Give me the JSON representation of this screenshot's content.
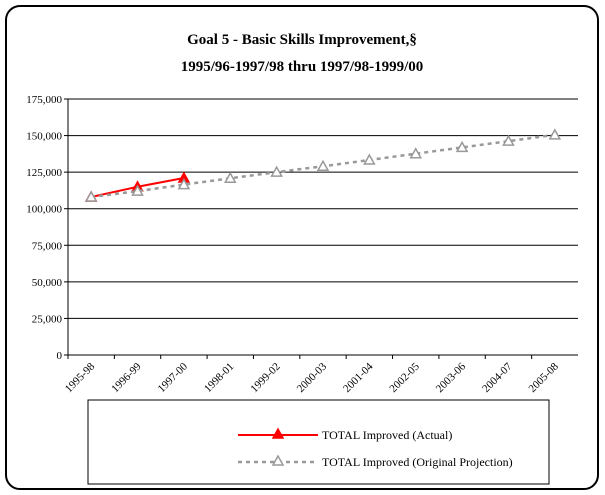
{
  "chart_data": {
    "type": "line",
    "title": [
      "Goal 5 - Basic Skills Improvement,§",
      "1995/96-1997/98 thru 1997/98-1999/00"
    ],
    "categories": [
      "1995-98",
      "1996-99",
      "1997-00",
      "1998-01",
      "1999-02",
      "2000-03",
      "2001-04",
      "2002-05",
      "2003-06",
      "2004-07",
      "2005-08"
    ],
    "series": [
      {
        "name": "TOTAL Improved (Actual)",
        "color": "#ff0000",
        "values": [
          108000,
          115000,
          121000,
          null,
          null,
          null,
          null,
          null,
          null,
          null,
          null
        ]
      },
      {
        "name": "TOTAL Improved (Original Projection)",
        "color": "#999999",
        "values": [
          108000,
          112000,
          116500,
          120800,
          125000,
          129000,
          133300,
          137600,
          141900,
          146200,
          150500
        ]
      }
    ],
    "ylim": [
      0,
      175000
    ],
    "yticks": [
      0,
      {
        "value": 25000,
        "label": "25,000"
      },
      {
        "value": 50000,
        "label": "50,000"
      },
      {
        "value": 75000,
        "label": "75,000"
      },
      {
        "value": 100000,
        "label": "100,000"
      },
      {
        "value": 125000,
        "label": "125,000"
      },
      {
        "value": 150000,
        "label": "150,000"
      },
      {
        "value": 175000,
        "label": "175,000"
      }
    ],
    "grid": true
  }
}
